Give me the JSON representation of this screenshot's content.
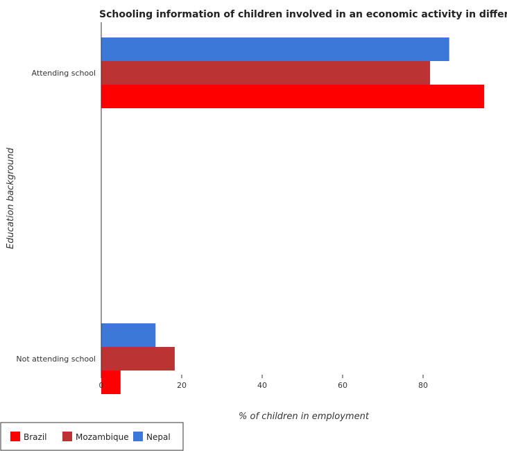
{
  "chart_data": {
    "type": "bar",
    "orientation": "horizontal",
    "title": "Schooling information of children involved in an economic activity in different countries",
    "xlabel": "% of children in employment",
    "ylabel": "Education background",
    "categories": [
      "Not attending school",
      "Attending school"
    ],
    "series": [
      {
        "name": "Brazil",
        "color": "#ff0000",
        "values": [
          4.8,
          95.2
        ]
      },
      {
        "name": "Mozambique",
        "color": "#bb3333",
        "values": [
          18.26,
          81.74
        ]
      },
      {
        "name": "Nepal",
        "color": "#3c78d8",
        "values": [
          13.5,
          86.5
        ]
      }
    ],
    "xlim": [
      0,
      100
    ],
    "xticks": [
      0,
      20,
      40,
      60,
      80
    ],
    "grid": false,
    "legend_position": "bottom-left"
  }
}
